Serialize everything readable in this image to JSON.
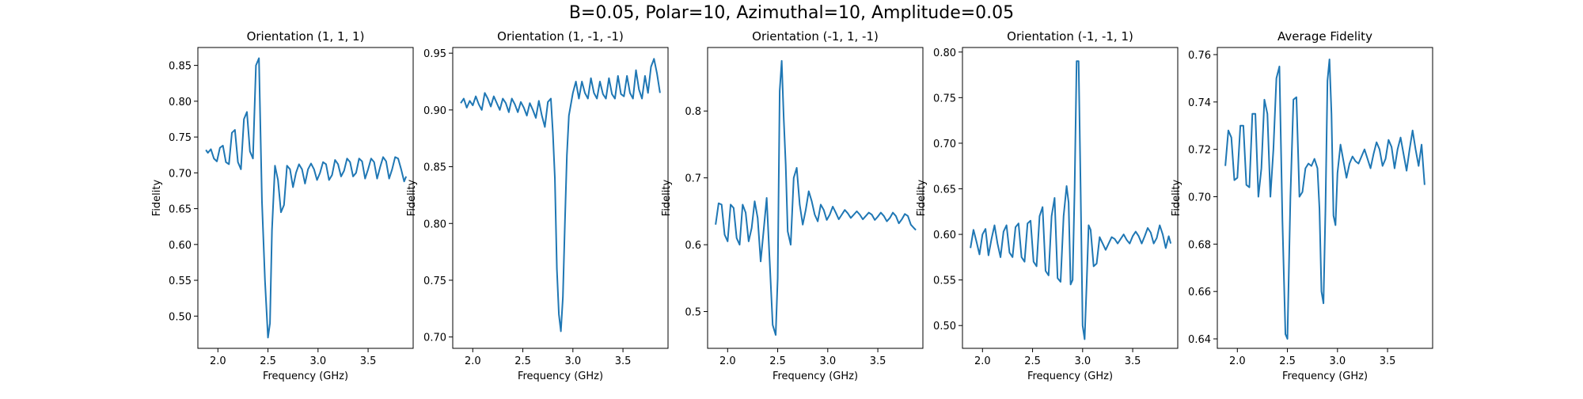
{
  "figure": {
    "suptitle": "B=0.05, Polar=10, Azimuthal=10, Amplitude=0.05"
  },
  "chart_data": [
    {
      "type": "line",
      "title": "Orientation (1, 1, 1)",
      "xlabel": "Frequency (GHz)",
      "ylabel": "Fidelity",
      "xlim": [
        1.8,
        3.95
      ],
      "ylim": [
        0.455,
        0.875
      ],
      "xticks": [
        2.0,
        2.5,
        3.0,
        3.5
      ],
      "xtick_labels": [
        "2.0",
        "2.5",
        "3.0",
        "3.5"
      ],
      "yticks": [
        0.5,
        0.55,
        0.6,
        0.65,
        0.7,
        0.75,
        0.8,
        0.85
      ],
      "ytick_labels": [
        "0.50",
        "0.55",
        "0.60",
        "0.65",
        "0.70",
        "0.75",
        "0.80",
        "0.85"
      ],
      "series": [
        {
          "color": "#1f77b4",
          "x": [
            1.88,
            1.9,
            1.93,
            1.96,
            1.99,
            2.02,
            2.05,
            2.08,
            2.11,
            2.14,
            2.17,
            2.2,
            2.23,
            2.26,
            2.29,
            2.32,
            2.35,
            2.38,
            2.41,
            2.44,
            2.47,
            2.5,
            2.52,
            2.54,
            2.57,
            2.6,
            2.63,
            2.66,
            2.69,
            2.72,
            2.75,
            2.78,
            2.81,
            2.84,
            2.87,
            2.9,
            2.93,
            2.96,
            2.99,
            3.02,
            3.05,
            3.08,
            3.11,
            3.14,
            3.17,
            3.2,
            3.23,
            3.26,
            3.29,
            3.32,
            3.35,
            3.38,
            3.41,
            3.44,
            3.47,
            3.5,
            3.53,
            3.56,
            3.59,
            3.62,
            3.65,
            3.68,
            3.71,
            3.74,
            3.77,
            3.8,
            3.83,
            3.86,
            3.88
          ],
          "y": [
            0.732,
            0.728,
            0.733,
            0.72,
            0.716,
            0.735,
            0.738,
            0.715,
            0.712,
            0.756,
            0.76,
            0.715,
            0.705,
            0.775,
            0.785,
            0.73,
            0.72,
            0.85,
            0.86,
            0.66,
            0.55,
            0.47,
            0.49,
            0.62,
            0.71,
            0.69,
            0.645,
            0.655,
            0.71,
            0.705,
            0.68,
            0.7,
            0.712,
            0.705,
            0.685,
            0.705,
            0.713,
            0.705,
            0.69,
            0.7,
            0.715,
            0.712,
            0.69,
            0.697,
            0.718,
            0.712,
            0.695,
            0.703,
            0.72,
            0.715,
            0.695,
            0.7,
            0.72,
            0.716,
            0.692,
            0.705,
            0.72,
            0.715,
            0.692,
            0.708,
            0.722,
            0.716,
            0.692,
            0.705,
            0.722,
            0.72,
            0.705,
            0.688,
            0.695
          ]
        }
      ]
    },
    {
      "type": "line",
      "title": "Orientation (1, -1, -1)",
      "xlabel": "Frequency (GHz)",
      "ylabel": "Fidelity",
      "xlim": [
        1.8,
        3.95
      ],
      "ylim": [
        0.69,
        0.955
      ],
      "xticks": [
        2.0,
        2.5,
        3.0,
        3.5
      ],
      "xtick_labels": [
        "2.0",
        "2.5",
        "3.0",
        "3.5"
      ],
      "yticks": [
        0.7,
        0.75,
        0.8,
        0.85,
        0.9,
        0.95
      ],
      "ytick_labels": [
        "0.70",
        "0.75",
        "0.80",
        "0.85",
        "0.90",
        "0.95"
      ],
      "series": [
        {
          "color": "#1f77b4",
          "x": [
            1.88,
            1.91,
            1.94,
            1.97,
            2.0,
            2.03,
            2.06,
            2.09,
            2.12,
            2.15,
            2.18,
            2.21,
            2.24,
            2.27,
            2.3,
            2.33,
            2.36,
            2.39,
            2.42,
            2.45,
            2.48,
            2.51,
            2.54,
            2.57,
            2.6,
            2.63,
            2.66,
            2.69,
            2.72,
            2.75,
            2.78,
            2.8,
            2.82,
            2.84,
            2.86,
            2.88,
            2.9,
            2.92,
            2.94,
            2.96,
            2.98,
            3.0,
            3.03,
            3.06,
            3.09,
            3.12,
            3.15,
            3.18,
            3.21,
            3.24,
            3.27,
            3.3,
            3.33,
            3.36,
            3.39,
            3.42,
            3.45,
            3.48,
            3.51,
            3.54,
            3.57,
            3.6,
            3.63,
            3.66,
            3.69,
            3.72,
            3.75,
            3.78,
            3.81,
            3.84,
            3.87
          ],
          "y": [
            0.906,
            0.91,
            0.902,
            0.908,
            0.904,
            0.912,
            0.905,
            0.9,
            0.915,
            0.91,
            0.903,
            0.912,
            0.906,
            0.9,
            0.91,
            0.906,
            0.898,
            0.91,
            0.905,
            0.898,
            0.907,
            0.902,
            0.895,
            0.906,
            0.9,
            0.893,
            0.908,
            0.895,
            0.885,
            0.907,
            0.91,
            0.88,
            0.84,
            0.76,
            0.72,
            0.705,
            0.735,
            0.8,
            0.86,
            0.895,
            0.905,
            0.915,
            0.925,
            0.91,
            0.925,
            0.915,
            0.91,
            0.928,
            0.915,
            0.91,
            0.925,
            0.914,
            0.91,
            0.928,
            0.914,
            0.91,
            0.93,
            0.914,
            0.912,
            0.93,
            0.915,
            0.91,
            0.935,
            0.918,
            0.91,
            0.93,
            0.915,
            0.938,
            0.945,
            0.932,
            0.915
          ]
        }
      ]
    },
    {
      "type": "line",
      "title": "Orientation (-1, 1, -1)",
      "xlabel": "Frequency (GHz)",
      "ylabel": "Fidelity",
      "xlim": [
        1.8,
        3.95
      ],
      "ylim": [
        0.445,
        0.895
      ],
      "xticks": [
        2.0,
        2.5,
        3.0,
        3.5
      ],
      "xtick_labels": [
        "2.0",
        "2.5",
        "3.0",
        "3.5"
      ],
      "yticks": [
        0.5,
        0.6,
        0.7,
        0.8
      ],
      "ytick_labels": [
        "0.5",
        "0.6",
        "0.7",
        "0.8"
      ],
      "series": [
        {
          "color": "#1f77b4",
          "x": [
            1.88,
            1.91,
            1.94,
            1.97,
            2.0,
            2.03,
            2.06,
            2.09,
            2.12,
            2.15,
            2.18,
            2.21,
            2.24,
            2.27,
            2.3,
            2.33,
            2.36,
            2.39,
            2.42,
            2.45,
            2.48,
            2.5,
            2.52,
            2.54,
            2.56,
            2.58,
            2.6,
            2.63,
            2.66,
            2.69,
            2.72,
            2.75,
            2.78,
            2.81,
            2.84,
            2.87,
            2.9,
            2.93,
            2.96,
            2.99,
            3.02,
            3.05,
            3.08,
            3.11,
            3.14,
            3.17,
            3.2,
            3.23,
            3.26,
            3.29,
            3.32,
            3.35,
            3.38,
            3.41,
            3.44,
            3.47,
            3.5,
            3.53,
            3.56,
            3.59,
            3.62,
            3.65,
            3.68,
            3.71,
            3.74,
            3.77,
            3.8,
            3.83,
            3.86,
            3.88
          ],
          "y": [
            0.63,
            0.662,
            0.66,
            0.615,
            0.605,
            0.66,
            0.655,
            0.61,
            0.6,
            0.66,
            0.648,
            0.605,
            0.625,
            0.665,
            0.64,
            0.575,
            0.622,
            0.67,
            0.575,
            0.48,
            0.465,
            0.55,
            0.83,
            0.875,
            0.79,
            0.72,
            0.62,
            0.6,
            0.7,
            0.715,
            0.66,
            0.63,
            0.652,
            0.68,
            0.665,
            0.645,
            0.635,
            0.66,
            0.652,
            0.637,
            0.645,
            0.657,
            0.648,
            0.638,
            0.645,
            0.652,
            0.647,
            0.64,
            0.645,
            0.65,
            0.645,
            0.638,
            0.643,
            0.648,
            0.645,
            0.637,
            0.642,
            0.648,
            0.643,
            0.635,
            0.64,
            0.648,
            0.643,
            0.632,
            0.638,
            0.646,
            0.643,
            0.63,
            0.625,
            0.622
          ]
        }
      ]
    },
    {
      "type": "line",
      "title": "Orientation (-1, -1, 1)",
      "xlabel": "Frequency (GHz)",
      "ylabel": "Fidelity",
      "xlim": [
        1.8,
        3.95
      ],
      "ylim": [
        0.475,
        0.805
      ],
      "xticks": [
        2.0,
        2.5,
        3.0,
        3.5
      ],
      "xtick_labels": [
        "2.0",
        "2.5",
        "3.0",
        "3.5"
      ],
      "yticks": [
        0.5,
        0.55,
        0.6,
        0.65,
        0.7,
        0.75,
        0.8
      ],
      "ytick_labels": [
        "0.50",
        "0.55",
        "0.60",
        "0.65",
        "0.70",
        "0.75",
        "0.80"
      ],
      "series": [
        {
          "color": "#1f77b4",
          "x": [
            1.88,
            1.91,
            1.94,
            1.97,
            2.0,
            2.03,
            2.06,
            2.09,
            2.12,
            2.15,
            2.18,
            2.21,
            2.24,
            2.27,
            2.3,
            2.33,
            2.36,
            2.39,
            2.42,
            2.45,
            2.48,
            2.51,
            2.54,
            2.57,
            2.6,
            2.63,
            2.66,
            2.69,
            2.72,
            2.75,
            2.78,
            2.81,
            2.84,
            2.86,
            2.88,
            2.9,
            2.92,
            2.94,
            2.96,
            2.98,
            3.0,
            3.02,
            3.04,
            3.06,
            3.08,
            3.11,
            3.14,
            3.17,
            3.2,
            3.23,
            3.26,
            3.29,
            3.32,
            3.35,
            3.38,
            3.41,
            3.44,
            3.47,
            3.5,
            3.53,
            3.56,
            3.59,
            3.62,
            3.65,
            3.68,
            3.71,
            3.74,
            3.77,
            3.8,
            3.83,
            3.86,
            3.88
          ],
          "y": [
            0.585,
            0.605,
            0.592,
            0.578,
            0.6,
            0.606,
            0.577,
            0.595,
            0.61,
            0.59,
            0.575,
            0.603,
            0.61,
            0.58,
            0.575,
            0.608,
            0.612,
            0.575,
            0.57,
            0.612,
            0.615,
            0.57,
            0.565,
            0.62,
            0.63,
            0.56,
            0.555,
            0.62,
            0.64,
            0.552,
            0.548,
            0.62,
            0.653,
            0.635,
            0.545,
            0.55,
            0.65,
            0.79,
            0.79,
            0.65,
            0.5,
            0.485,
            0.545,
            0.61,
            0.605,
            0.565,
            0.568,
            0.597,
            0.59,
            0.583,
            0.59,
            0.597,
            0.595,
            0.59,
            0.595,
            0.6,
            0.594,
            0.59,
            0.598,
            0.603,
            0.598,
            0.59,
            0.598,
            0.607,
            0.602,
            0.59,
            0.596,
            0.61,
            0.6,
            0.585,
            0.598,
            0.59
          ]
        }
      ]
    },
    {
      "type": "line",
      "title": "Average Fidelity",
      "xlabel": "Frequency (GHz)",
      "ylabel": "Fidelity",
      "xlim": [
        1.8,
        3.95
      ],
      "ylim": [
        0.636,
        0.763
      ],
      "xticks": [
        2.0,
        2.5,
        3.0,
        3.5
      ],
      "xtick_labels": [
        "2.0",
        "2.5",
        "3.0",
        "3.5"
      ],
      "yticks": [
        0.64,
        0.66,
        0.68,
        0.7,
        0.72,
        0.74,
        0.76
      ],
      "ytick_labels": [
        "0.64",
        "0.66",
        "0.68",
        "0.70",
        "0.72",
        "0.74",
        "0.76"
      ],
      "series": [
        {
          "color": "#1f77b4",
          "x": [
            1.88,
            1.91,
            1.94,
            1.97,
            2.0,
            2.03,
            2.06,
            2.09,
            2.12,
            2.15,
            2.18,
            2.21,
            2.24,
            2.27,
            2.3,
            2.33,
            2.36,
            2.39,
            2.42,
            2.45,
            2.48,
            2.5,
            2.53,
            2.56,
            2.59,
            2.62,
            2.65,
            2.68,
            2.71,
            2.74,
            2.77,
            2.8,
            2.82,
            2.84,
            2.86,
            2.88,
            2.9,
            2.92,
            2.94,
            2.96,
            2.98,
            3.0,
            3.03,
            3.06,
            3.09,
            3.12,
            3.15,
            3.18,
            3.21,
            3.24,
            3.27,
            3.3,
            3.33,
            3.36,
            3.39,
            3.42,
            3.45,
            3.48,
            3.51,
            3.54,
            3.57,
            3.6,
            3.63,
            3.66,
            3.69,
            3.72,
            3.75,
            3.78,
            3.81,
            3.84,
            3.87
          ],
          "y": [
            0.713,
            0.728,
            0.725,
            0.707,
            0.708,
            0.73,
            0.73,
            0.705,
            0.704,
            0.735,
            0.735,
            0.7,
            0.712,
            0.741,
            0.735,
            0.7,
            0.72,
            0.75,
            0.755,
            0.69,
            0.642,
            0.64,
            0.7,
            0.741,
            0.742,
            0.7,
            0.702,
            0.712,
            0.714,
            0.713,
            0.716,
            0.712,
            0.695,
            0.66,
            0.655,
            0.695,
            0.749,
            0.758,
            0.735,
            0.692,
            0.688,
            0.71,
            0.722,
            0.715,
            0.708,
            0.714,
            0.717,
            0.715,
            0.714,
            0.717,
            0.72,
            0.716,
            0.712,
            0.718,
            0.723,
            0.72,
            0.713,
            0.716,
            0.724,
            0.721,
            0.712,
            0.72,
            0.725,
            0.718,
            0.711,
            0.72,
            0.728,
            0.72,
            0.713,
            0.722,
            0.705
          ]
        }
      ]
    }
  ]
}
